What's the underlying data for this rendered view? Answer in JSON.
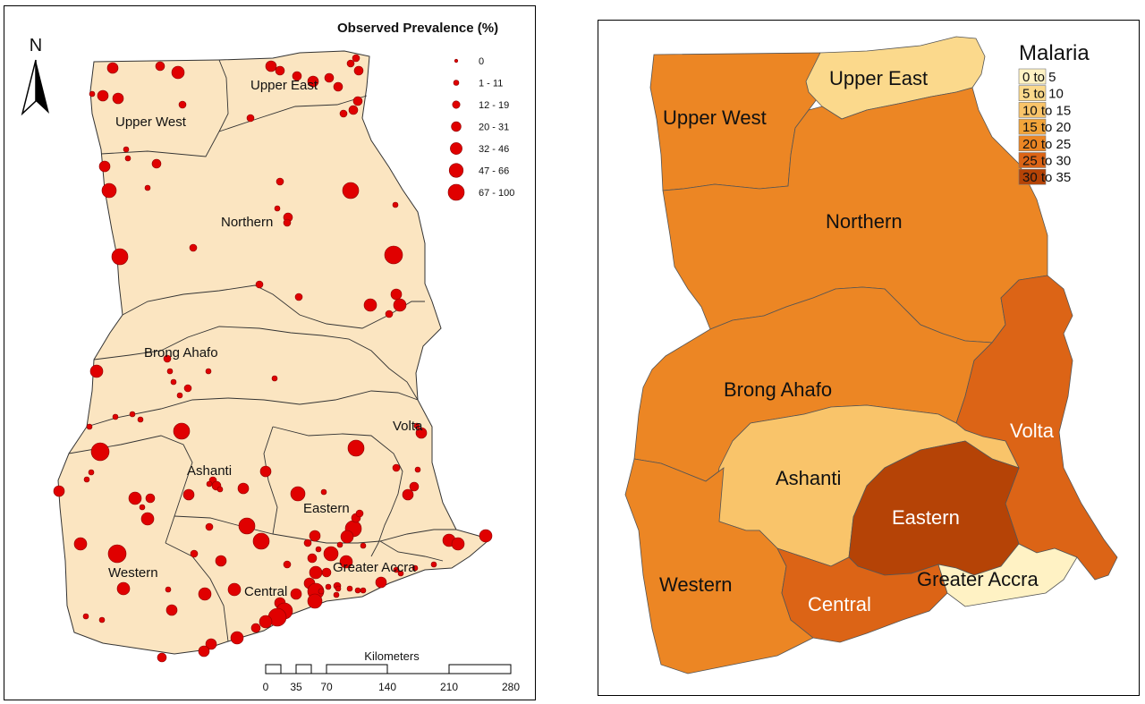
{
  "left_map": {
    "north_label": "N",
    "legend_title": "Observed Prevalence (%)",
    "legend_items": [
      {
        "label": "0",
        "r": 1.8
      },
      {
        "label": "1 - 11",
        "r": 3
      },
      {
        "label": "12 - 19",
        "r": 4.2
      },
      {
        "label": "20 - 31",
        "r": 5.4
      },
      {
        "label": "32 - 46",
        "r": 6.6
      },
      {
        "label": "47 - 66",
        "r": 7.8
      },
      {
        "label": "67 - 100",
        "r": 9
      }
    ],
    "regions": {
      "upper_west": "Upper West",
      "upper_east": "Upper East",
      "northern": "Northern",
      "brong_ahafo": "Brong Ahafo",
      "volta": "Volta",
      "ashanti": "Ashanti",
      "eastern": "Eastern",
      "western": "Western",
      "central": "Central",
      "greater_accra": "Greater Accra"
    },
    "scale": {
      "title": "Kilometers",
      "ticks": [
        "0",
        "35",
        "70",
        "140",
        "210",
        "280"
      ]
    },
    "colors": {
      "land": "#fbe5c1",
      "point": "#e00000",
      "point_stroke": "#8a0000"
    }
  },
  "right_map": {
    "legend_title": "Malaria",
    "legend_items": [
      {
        "label": "0 to 5",
        "color": "#fff2c4"
      },
      {
        "label": "5 to 10",
        "color": "#fbd98c"
      },
      {
        "label": "10 to 15",
        "color": "#f9c46a"
      },
      {
        "label": "15 to 20",
        "color": "#f2a43a"
      },
      {
        "label": "20 to 25",
        "color": "#ec8624"
      },
      {
        "label": "25 to 30",
        "color": "#dc6416"
      },
      {
        "label": "30 to 35",
        "color": "#b54306"
      }
    ],
    "regions": {
      "upper_west": "Upper West",
      "upper_east": "Upper East",
      "northern": "Northern",
      "brong_ahafo": "Brong Ahafo",
      "volta": "Volta",
      "ashanti": "Ashanti",
      "eastern": "Eastern",
      "western": "Western",
      "central": "Central",
      "greater_accra": "Greater Accra"
    }
  }
}
